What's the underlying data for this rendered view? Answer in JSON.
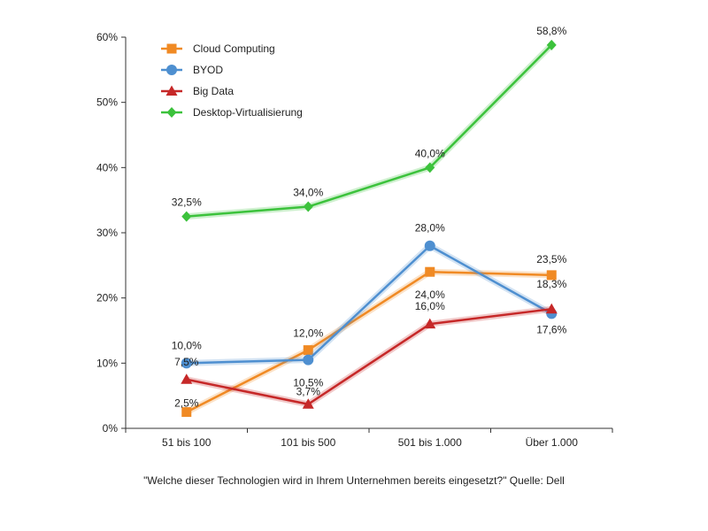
{
  "chart_data": {
    "type": "line",
    "categories": [
      "51 bis 100",
      "101 bis 500",
      "501 bis 1.000",
      "Über 1.000"
    ],
    "y_tick_labels": [
      "0%",
      "10%",
      "20%",
      "30%",
      "40%",
      "50%",
      "60%"
    ],
    "ylim": [
      0,
      60
    ],
    "legend_position": "top-left",
    "series": [
      {
        "name": "Cloud Computing",
        "color": "#f08a24",
        "marker": "square",
        "values": [
          2.5,
          12.0,
          24.0,
          23.5
        ],
        "labels": [
          "2,5%",
          "12,0%",
          "24,0%",
          "23,5%"
        ]
      },
      {
        "name": "BYOD",
        "color": "#4e8fd0",
        "marker": "circle",
        "values": [
          10.0,
          10.5,
          28.0,
          17.6
        ],
        "labels": [
          "10,0%",
          "10,5%",
          "28,0%",
          "17,6%"
        ]
      },
      {
        "name": "Big Data",
        "color": "#c62828",
        "marker": "triangle",
        "values": [
          7.5,
          3.7,
          16.0,
          18.3
        ],
        "labels": [
          "7,5%",
          "3,7%",
          "16,0%",
          "18,3%"
        ]
      },
      {
        "name": "Desktop-Virtualisierung",
        "color": "#3cc23c",
        "marker": "diamond",
        "values": [
          32.5,
          34.0,
          40.0,
          58.8
        ],
        "labels": [
          "32,5%",
          "34,0%",
          "40,0%",
          "58,8%"
        ]
      }
    ],
    "caption": "\"Welche dieser Technologien wird in Ihrem Unternehmen bereits eingesetzt?\" Quelle: Dell"
  }
}
